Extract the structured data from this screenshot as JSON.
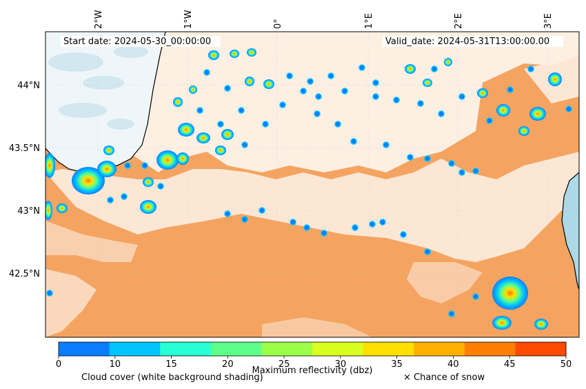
{
  "header": {
    "start_date": "Start date: 2024-05-30_00:00:00",
    "valid_date": "Valid_date: 2024-05-31T13:00:00.00"
  },
  "axes": {
    "lon_labels": [
      "2°W",
      "1°W",
      "0°",
      "1°E",
      "2°E",
      "3°E"
    ],
    "lat_labels": [
      "44°N",
      "43.5°N",
      "43°N",
      "42.5°N"
    ]
  },
  "colorbar": {
    "ticks": [
      "0",
      "10",
      "15",
      "20",
      "25",
      "30",
      "35",
      "40",
      "45",
      "50"
    ],
    "colors": [
      "#0a7dff",
      "#00c4ff",
      "#28ffd2",
      "#5cff8a",
      "#9bff4a",
      "#d8ff1e",
      "#ffe000",
      "#ffb000",
      "#ff8000",
      "#ff4a00"
    ],
    "label": "Maximum reflectivity (dbz)",
    "cloud_label": "Cloud cover (white background shading)",
    "snow_label": "× Chance of snow"
  },
  "colors": {
    "land": "#f4a460",
    "sea": "#add8e6",
    "cloud": "#ffffff"
  }
}
